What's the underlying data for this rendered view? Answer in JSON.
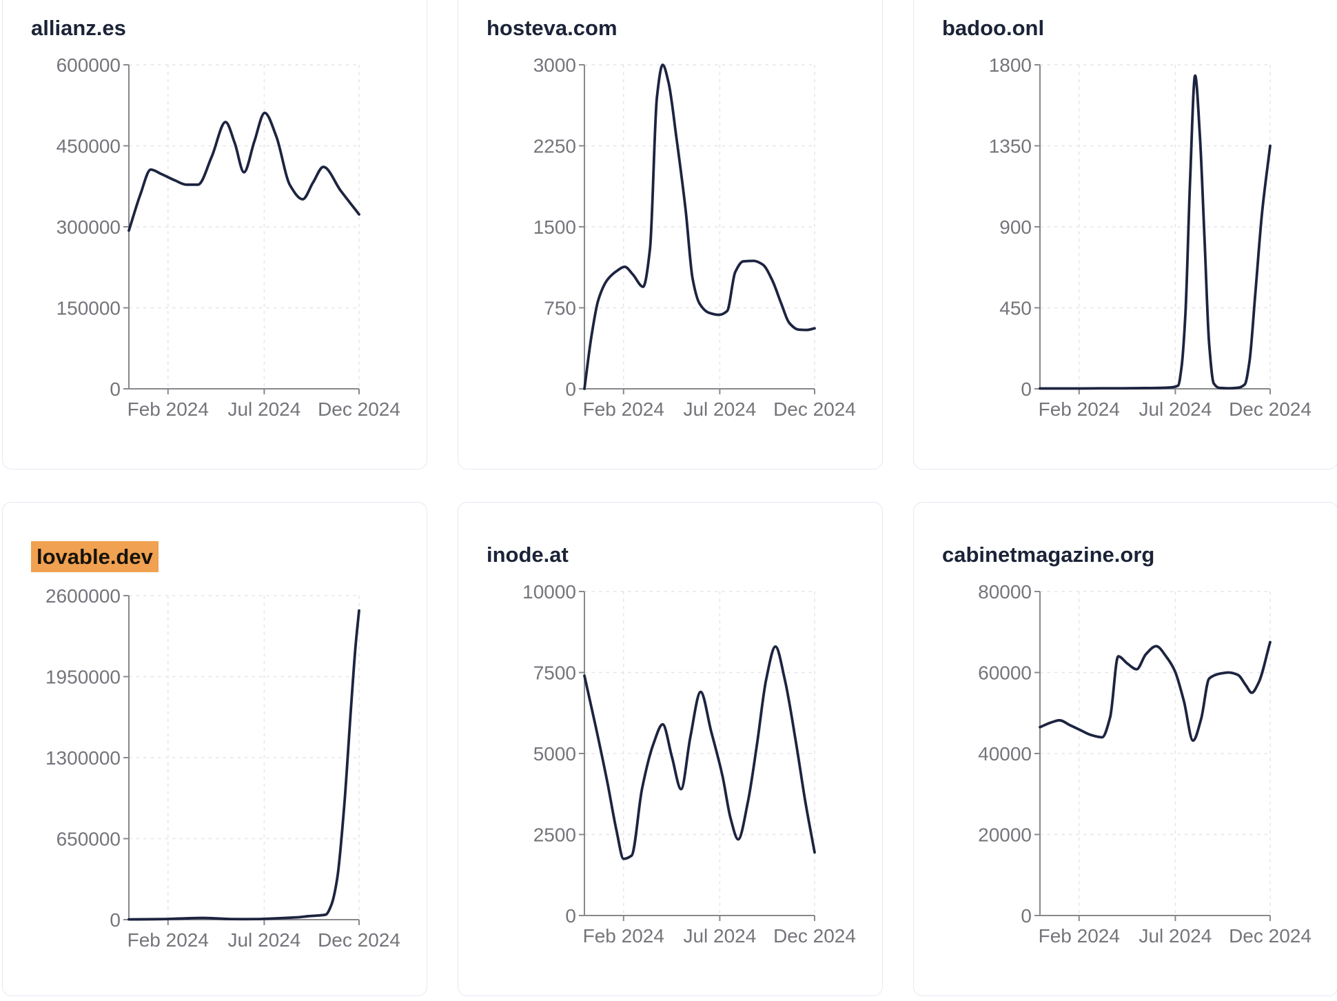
{
  "palette": {
    "page_bg": "#ffffff",
    "card_bg": "#ffffff",
    "card_border": "#e3e8f1",
    "title_color": "#1b2337",
    "line_color": "#1d2440",
    "axis_color": "#87888c",
    "grid_color": "#e4e5e9",
    "tick_label_color": "#74757b",
    "highlight_bg": "#f0a151",
    "highlight_text": "#17130b"
  },
  "chart_data": [
    {
      "type": "line",
      "title": "allianz.es",
      "highlighted": false,
      "ylim": [
        0,
        600000
      ],
      "y_ticks": [
        0,
        150000,
        300000,
        450000,
        600000
      ],
      "x_ticks": [
        {
          "label": "Feb 2024",
          "f": 0.17
        },
        {
          "label": "Jul 2024",
          "f": 0.588
        },
        {
          "label": "Dec 2024",
          "f": 1.0
        }
      ],
      "points": [
        [
          0.0,
          293000
        ],
        [
          0.05,
          360000
        ],
        [
          0.095,
          406000
        ],
        [
          0.14,
          398000
        ],
        [
          0.2,
          386000
        ],
        [
          0.25,
          378000
        ],
        [
          0.3,
          378000
        ],
        [
          0.36,
          430000
        ],
        [
          0.42,
          494000
        ],
        [
          0.46,
          455000
        ],
        [
          0.5,
          401000
        ],
        [
          0.545,
          458000
        ],
        [
          0.59,
          511000
        ],
        [
          0.64,
          468000
        ],
        [
          0.7,
          377000
        ],
        [
          0.755,
          351000
        ],
        [
          0.8,
          382000
        ],
        [
          0.845,
          411000
        ],
        [
          0.92,
          367000
        ],
        [
          1.0,
          323000
        ]
      ]
    },
    {
      "type": "line",
      "title": "hosteva.com",
      "highlighted": false,
      "ylim": [
        0,
        3000
      ],
      "y_ticks": [
        0,
        750,
        1500,
        2250,
        3000
      ],
      "x_ticks": [
        {
          "label": "Feb 2024",
          "f": 0.17
        },
        {
          "label": "Jul 2024",
          "f": 0.588
        },
        {
          "label": "Dec 2024",
          "f": 1.0
        }
      ],
      "points": [
        [
          0.0,
          0
        ],
        [
          0.03,
          480
        ],
        [
          0.06,
          820
        ],
        [
          0.1,
          1010
        ],
        [
          0.14,
          1090
        ],
        [
          0.175,
          1130
        ],
        [
          0.21,
          1060
        ],
        [
          0.255,
          945
        ],
        [
          0.285,
          1300
        ],
        [
          0.315,
          2700
        ],
        [
          0.34,
          3000
        ],
        [
          0.365,
          2840
        ],
        [
          0.4,
          2320
        ],
        [
          0.44,
          1650
        ],
        [
          0.47,
          1020
        ],
        [
          0.5,
          790
        ],
        [
          0.54,
          705
        ],
        [
          0.585,
          685
        ],
        [
          0.62,
          720
        ],
        [
          0.655,
          1080
        ],
        [
          0.69,
          1180
        ],
        [
          0.735,
          1185
        ],
        [
          0.775,
          1150
        ],
        [
          0.815,
          1010
        ],
        [
          0.855,
          790
        ],
        [
          0.89,
          610
        ],
        [
          0.93,
          548
        ],
        [
          0.965,
          545
        ],
        [
          1.0,
          560
        ]
      ]
    },
    {
      "type": "line",
      "title": "badoo.onl",
      "highlighted": false,
      "ylim": [
        0,
        1800
      ],
      "y_ticks": [
        0,
        450,
        900,
        1350,
        1800
      ],
      "x_ticks": [
        {
          "label": "Feb 2024",
          "f": 0.17
        },
        {
          "label": "Jul 2024",
          "f": 0.588
        },
        {
          "label": "Dec 2024",
          "f": 1.0
        }
      ],
      "points": [
        [
          0.0,
          2
        ],
        [
          0.09,
          2
        ],
        [
          0.18,
          2
        ],
        [
          0.27,
          3
        ],
        [
          0.36,
          3
        ],
        [
          0.45,
          4
        ],
        [
          0.52,
          5
        ],
        [
          0.57,
          8
        ],
        [
          0.6,
          18
        ],
        [
          0.615,
          120
        ],
        [
          0.632,
          420
        ],
        [
          0.652,
          1150
        ],
        [
          0.674,
          1740
        ],
        [
          0.695,
          1400
        ],
        [
          0.715,
          830
        ],
        [
          0.735,
          250
        ],
        [
          0.755,
          30
        ],
        [
          0.78,
          5
        ],
        [
          0.82,
          3
        ],
        [
          0.86,
          6
        ],
        [
          0.89,
          25
        ],
        [
          0.91,
          150
        ],
        [
          0.935,
          520
        ],
        [
          0.965,
          980
        ],
        [
          1.0,
          1350
        ]
      ]
    },
    {
      "type": "line",
      "title": "lovable.dev",
      "highlighted": true,
      "ylim": [
        0,
        2600000
      ],
      "y_ticks": [
        0,
        650000,
        1300000,
        1950000,
        2600000
      ],
      "x_ticks": [
        {
          "label": "Feb 2024",
          "f": 0.17
        },
        {
          "label": "Jul 2024",
          "f": 0.588
        },
        {
          "label": "Dec 2024",
          "f": 1.0
        }
      ],
      "points": [
        [
          0.0,
          2000
        ],
        [
          0.08,
          3000
        ],
        [
          0.16,
          5000
        ],
        [
          0.24,
          10000
        ],
        [
          0.32,
          14000
        ],
        [
          0.38,
          10000
        ],
        [
          0.44,
          5000
        ],
        [
          0.5,
          4000
        ],
        [
          0.56,
          5000
        ],
        [
          0.62,
          9000
        ],
        [
          0.68,
          14000
        ],
        [
          0.74,
          20000
        ],
        [
          0.78,
          28000
        ],
        [
          0.82,
          33000
        ],
        [
          0.855,
          40000
        ],
        [
          0.88,
          120000
        ],
        [
          0.905,
          330000
        ],
        [
          0.935,
          900000
        ],
        [
          0.965,
          1700000
        ],
        [
          0.985,
          2200000
        ],
        [
          1.0,
          2480000
        ]
      ]
    },
    {
      "type": "line",
      "title": "inode.at",
      "highlighted": false,
      "ylim": [
        0,
        10000
      ],
      "y_ticks": [
        0,
        2500,
        5000,
        7500,
        10000
      ],
      "x_ticks": [
        {
          "label": "Feb 2024",
          "f": 0.17
        },
        {
          "label": "Jul 2024",
          "f": 0.588
        },
        {
          "label": "Dec 2024",
          "f": 1.0
        }
      ],
      "points": [
        [
          0.0,
          7400
        ],
        [
          0.05,
          5800
        ],
        [
          0.1,
          4100
        ],
        [
          0.14,
          2600
        ],
        [
          0.17,
          1750
        ],
        [
          0.205,
          1850
        ],
        [
          0.25,
          3900
        ],
        [
          0.3,
          5300
        ],
        [
          0.34,
          5900
        ],
        [
          0.38,
          4900
        ],
        [
          0.42,
          3900
        ],
        [
          0.46,
          5500
        ],
        [
          0.505,
          6900
        ],
        [
          0.55,
          5700
        ],
        [
          0.6,
          4300
        ],
        [
          0.635,
          3000
        ],
        [
          0.668,
          2350
        ],
        [
          0.71,
          3500
        ],
        [
          0.75,
          5300
        ],
        [
          0.79,
          7300
        ],
        [
          0.83,
          8300
        ],
        [
          0.87,
          7300
        ],
        [
          0.92,
          5300
        ],
        [
          0.96,
          3500
        ],
        [
          1.0,
          1950
        ]
      ]
    },
    {
      "type": "line",
      "title": "cabinetmagazine.org",
      "highlighted": false,
      "ylim": [
        0,
        80000
      ],
      "y_ticks": [
        0,
        20000,
        40000,
        60000,
        80000
      ],
      "x_ticks": [
        {
          "label": "Feb 2024",
          "f": 0.17
        },
        {
          "label": "Jul 2024",
          "f": 0.588
        },
        {
          "label": "Dec 2024",
          "f": 1.0
        }
      ],
      "points": [
        [
          0.0,
          46500
        ],
        [
          0.05,
          47700
        ],
        [
          0.085,
          48200
        ],
        [
          0.13,
          47000
        ],
        [
          0.175,
          45800
        ],
        [
          0.22,
          44600
        ],
        [
          0.27,
          44000
        ],
        [
          0.305,
          49000
        ],
        [
          0.34,
          64000
        ],
        [
          0.38,
          62200
        ],
        [
          0.42,
          60800
        ],
        [
          0.46,
          64500
        ],
        [
          0.505,
          66500
        ],
        [
          0.55,
          63800
        ],
        [
          0.585,
          60500
        ],
        [
          0.625,
          53000
        ],
        [
          0.665,
          43200
        ],
        [
          0.7,
          48500
        ],
        [
          0.735,
          58500
        ],
        [
          0.78,
          59700
        ],
        [
          0.82,
          60000
        ],
        [
          0.86,
          59400
        ],
        [
          0.895,
          56800
        ],
        [
          0.92,
          55000
        ],
        [
          0.95,
          57500
        ],
        [
          1.0,
          67500
        ]
      ]
    }
  ]
}
